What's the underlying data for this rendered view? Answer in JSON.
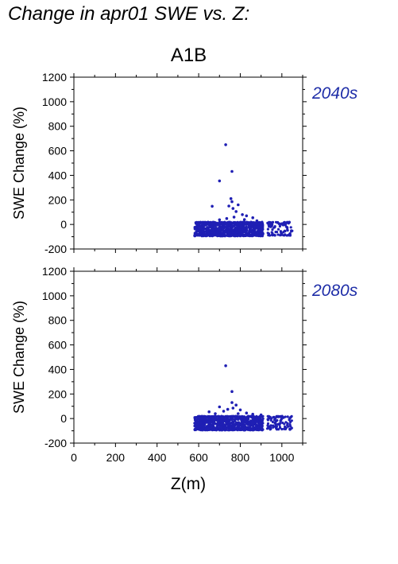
{
  "title": "Change in apr01 SWE vs. Z:",
  "scenario": "A1B",
  "colors": {
    "points": "#1f1fb4",
    "period_label": "#1f2ea8",
    "axis": "#000000"
  },
  "chart_data": [
    {
      "type": "scatter",
      "period": "2040s",
      "ylabel": "SWE Change (%)",
      "xlabel": "Z(m)",
      "xlim": [
        0,
        1100
      ],
      "ylim": [
        -200,
        1200
      ],
      "yticks": [
        "-200",
        "0",
        "200",
        "400",
        "600",
        "800",
        "1000",
        "1200"
      ],
      "xticks": [
        "0",
        "200",
        "400",
        "600",
        "800",
        "1000"
      ],
      "points": [
        [
          730,
          650
        ],
        [
          760,
          432
        ],
        [
          700,
          355
        ],
        [
          665,
          148
        ],
        [
          755,
          210
        ],
        [
          760,
          185
        ],
        [
          790,
          160
        ],
        [
          765,
          130
        ],
        [
          780,
          105
        ],
        [
          745,
          150
        ],
        [
          810,
          80
        ],
        [
          770,
          60
        ],
        [
          830,
          70
        ],
        [
          860,
          55
        ],
        [
          735,
          48
        ],
        [
          700,
          38
        ],
        [
          820,
          40
        ],
        [
          880,
          30
        ]
      ],
      "clusters": [
        {
          "x_range": [
            580,
            910
          ],
          "y_range": [
            -95,
            20
          ],
          "count": 900
        },
        {
          "x_range": [
            930,
            1050
          ],
          "y_range": [
            -90,
            20
          ],
          "count": 90
        }
      ]
    },
    {
      "type": "scatter",
      "period": "2080s",
      "ylabel": "SWE Change (%)",
      "xlabel": "Z(m)",
      "xlim": [
        0,
        1100
      ],
      "ylim": [
        -200,
        1200
      ],
      "yticks": [
        "-200",
        "0",
        "200",
        "400",
        "600",
        "800",
        "1000",
        "1200"
      ],
      "xticks": [
        "0",
        "200",
        "400",
        "600",
        "800",
        "1000"
      ],
      "points": [
        [
          730,
          430
        ],
        [
          760,
          220
        ],
        [
          760,
          130
        ],
        [
          700,
          95
        ],
        [
          780,
          110
        ],
        [
          765,
          85
        ],
        [
          740,
          75
        ],
        [
          650,
          55
        ],
        [
          800,
          70
        ],
        [
          720,
          60
        ],
        [
          830,
          45
        ],
        [
          790,
          40
        ],
        [
          680,
          40
        ],
        [
          860,
          35
        ],
        [
          900,
          30
        ]
      ],
      "clusters": [
        {
          "x_range": [
            580,
            910
          ],
          "y_range": [
            -95,
            20
          ],
          "count": 900
        },
        {
          "x_range": [
            930,
            1050
          ],
          "y_range": [
            -90,
            20
          ],
          "count": 90
        }
      ]
    }
  ]
}
